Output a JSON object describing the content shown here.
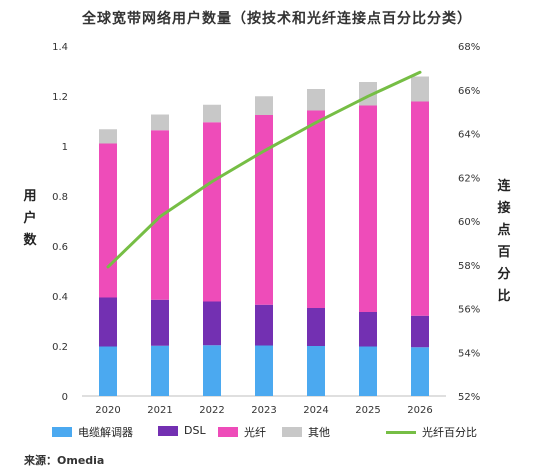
{
  "title": "全球宽带网络用户数量（按技术和光纤连接点百分比分类）",
  "source": "来源：Omedia",
  "colors": {
    "modem": "#4BA9F0",
    "dsl": "#7330B2",
    "fiber": "#EE4CB9",
    "other": "#C8C8C8",
    "fiber_pct": "#76BE45"
  },
  "chart_data": {
    "type": "bar",
    "stacked": true,
    "categories": [
      "2020",
      "2021",
      "2022",
      "2023",
      "2024",
      "2025",
      "2026"
    ],
    "ylabel": "用户数",
    "y2label": "连接点百分比",
    "ylim": [
      0,
      1.4
    ],
    "y_ticks": [
      "0",
      "0.2",
      "0.4",
      "0.6",
      "0.8",
      "1",
      "1.2",
      "1.4"
    ],
    "y2lim": [
      52,
      68
    ],
    "y2_ticks": [
      "52%",
      "54%",
      "56%",
      "58%",
      "60%",
      "62%",
      "64%",
      "66%",
      "68%"
    ],
    "grid": false,
    "legend_position": "bottom",
    "series": [
      {
        "name": "电缆解调器",
        "color_key": "modem",
        "values": [
          0.198,
          0.201,
          0.203,
          0.202,
          0.2,
          0.198,
          0.195
        ]
      },
      {
        "name": "DSL",
        "color_key": "dsl",
        "values": [
          0.196,
          0.184,
          0.175,
          0.163,
          0.152,
          0.138,
          0.126
        ]
      },
      {
        "name": "光纤",
        "color_key": "fiber",
        "values": [
          0.616,
          0.678,
          0.717,
          0.759,
          0.79,
          0.826,
          0.857
        ]
      },
      {
        "name": "其他",
        "color_key": "other",
        "values": [
          0.057,
          0.063,
          0.07,
          0.075,
          0.086,
          0.094,
          0.1
        ]
      }
    ],
    "line_series": [
      {
        "name": "光纤百分比",
        "color_key": "fiber_pct",
        "axis": "right",
        "values": [
          57.9,
          60.2,
          61.8,
          63.2,
          64.5,
          65.7,
          66.8
        ]
      }
    ]
  }
}
